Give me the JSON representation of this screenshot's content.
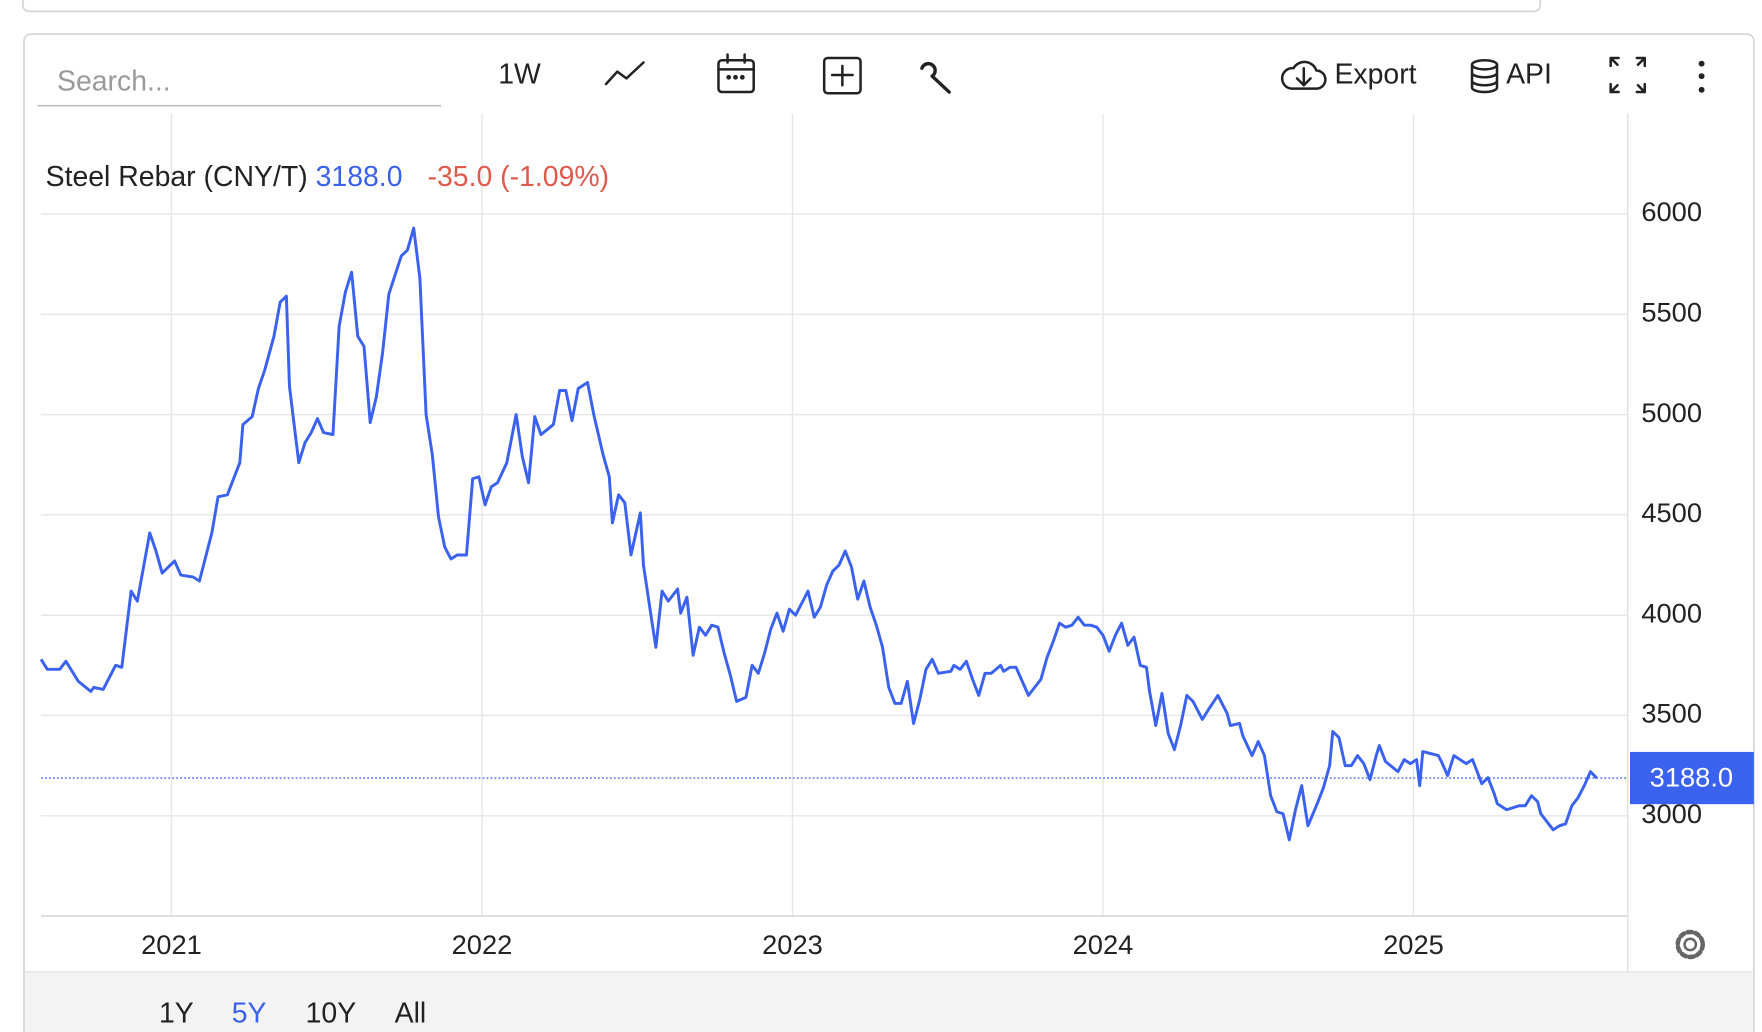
{
  "toolbar": {
    "search_placeholder": "Search...",
    "interval": "1W",
    "export": "Export",
    "api": "API"
  },
  "chart_data": {
    "type": "line",
    "change": "-35.0 (-1.09%)",
    "last": {
      "value": 3188,
      "label": "3188.0"
    },
    "x": [
      2020.58,
      2020.6,
      2020.64,
      2020.66,
      2020.7,
      2020.74,
      2020.75,
      2020.78,
      2020.82,
      2020.84,
      2020.87,
      2020.89,
      2020.93,
      2020.95,
      2020.97,
      2021.01,
      2021.03,
      2021.07,
      2021.09,
      2021.13,
      2021.15,
      2021.18,
      2021.22,
      2021.23,
      2021.26,
      2021.28,
      2021.3,
      2021.33,
      2021.35,
      2021.37,
      2021.38,
      2021.41,
      2021.43,
      2021.45,
      2021.47,
      2021.49,
      2021.52,
      2021.54,
      2021.56,
      2021.58,
      2021.6,
      2021.62,
      2021.64,
      2021.66,
      2021.68,
      2021.7,
      2021.74,
      2021.76,
      2021.78,
      2021.8,
      2021.82,
      2021.84,
      2021.86,
      2021.88,
      2021.9,
      2021.92,
      2021.95,
      2021.97,
      2021.99,
      2022.01,
      2022.03,
      2022.05,
      2022.08,
      2022.11,
      2022.13,
      2022.15,
      2022.17,
      2022.19,
      2022.23,
      2022.25,
      2022.27,
      2022.29,
      2022.31,
      2022.34,
      2022.36,
      2022.39,
      2022.41,
      2022.42,
      2022.44,
      2022.46,
      2022.48,
      2022.51,
      2022.52,
      2022.55,
      2022.56,
      2022.58,
      2022.6,
      2022.63,
      2022.64,
      2022.66,
      2022.68,
      2022.7,
      2022.72,
      2022.74,
      2022.76,
      2022.78,
      2022.8,
      2022.82,
      2022.85,
      2022.87,
      2022.89,
      2022.91,
      2022.93,
      2022.95,
      2022.97,
      2022.99,
      2023.01,
      2023.04,
      2023.05,
      2023.07,
      2023.09,
      2023.11,
      2023.13,
      2023.15,
      2023.17,
      2023.19,
      2023.21,
      2023.23,
      2023.25,
      2023.27,
      2023.29,
      2023.31,
      2023.33,
      2023.35,
      2023.37,
      2023.39,
      2023.41,
      2023.43,
      2023.45,
      2023.47,
      2023.51,
      2023.52,
      2023.54,
      2023.56,
      2023.58,
      2023.6,
      2023.62,
      2023.64,
      2023.67,
      2023.68,
      2023.7,
      2023.72,
      2023.74,
      2023.76,
      2023.78,
      2023.8,
      2023.82,
      2023.84,
      2023.86,
      2023.88,
      2023.9,
      2023.92,
      2023.94,
      2023.96,
      2023.98,
      2024.0,
      2024.02,
      2024.04,
      2024.06,
      2024.08,
      2024.1,
      2024.12,
      2024.14,
      2024.15,
      2024.17,
      2024.19,
      2024.21,
      2024.23,
      2024.25,
      2024.27,
      2024.29,
      2024.32,
      2024.34,
      2024.37,
      2024.4,
      2024.41,
      2024.44,
      2024.45,
      2024.48,
      2024.5,
      2024.52,
      2024.54,
      2024.56,
      2024.58,
      2024.6,
      2024.62,
      2024.64,
      2024.66,
      2024.69,
      2024.71,
      2024.73,
      2024.74,
      2024.76,
      2024.78,
      2024.8,
      2024.82,
      2024.84,
      2024.86,
      2024.88,
      2024.89,
      2024.91,
      2024.95,
      2024.97,
      2024.99,
      2025.01,
      2025.02,
      2025.03,
      2025.08,
      2025.09,
      2025.11,
      2025.13,
      2025.17,
      2025.19,
      2025.2,
      2025.22,
      2025.24,
      2025.26,
      2025.27,
      2025.3,
      2025.34,
      2025.36,
      2025.38,
      2025.4,
      2025.41,
      2025.44,
      2025.45,
      2025.47,
      2025.49,
      2025.51,
      2025.53,
      2025.55,
      2025.57,
      2025.59
    ],
    "series": [
      {
        "name": "Steel Rebar (CNY/T)",
        "color": "#3b62ee",
        "values": [
          3780,
          3730,
          3730,
          3770,
          3670,
          3620,
          3640,
          3630,
          3750,
          3740,
          4120,
          4070,
          4410,
          4320,
          4210,
          4270,
          4200,
          4190,
          4170,
          4410,
          4590,
          4600,
          4760,
          4950,
          4990,
          5130,
          5220,
          5390,
          5560,
          5590,
          5140,
          4760,
          4860,
          4910,
          4980,
          4910,
          4900,
          5440,
          5610,
          5710,
          5390,
          5340,
          4960,
          5090,
          5310,
          5600,
          5790,
          5820,
          5930,
          5680,
          5000,
          4800,
          4490,
          4340,
          4280,
          4300,
          4300,
          4680,
          4690,
          4550,
          4640,
          4660,
          4760,
          5000,
          4790,
          4660,
          4990,
          4900,
          4950,
          5120,
          5120,
          4970,
          5130,
          5160,
          5000,
          4800,
          4690,
          4460,
          4600,
          4560,
          4300,
          4510,
          4250,
          3940,
          3840,
          4120,
          4070,
          4130,
          4010,
          4090,
          3800,
          3940,
          3900,
          3950,
          3940,
          3810,
          3700,
          3570,
          3590,
          3750,
          3710,
          3810,
          3930,
          4010,
          3920,
          4030,
          4000,
          4090,
          4120,
          3990,
          4040,
          4150,
          4220,
          4250,
          4320,
          4240,
          4080,
          4170,
          4040,
          3950,
          3840,
          3640,
          3560,
          3560,
          3670,
          3460,
          3580,
          3730,
          3780,
          3710,
          3720,
          3750,
          3730,
          3770,
          3680,
          3600,
          3710,
          3710,
          3750,
          3720,
          3740,
          3740,
          3670,
          3600,
          3640,
          3680,
          3790,
          3870,
          3960,
          3940,
          3950,
          3990,
          3950,
          3950,
          3940,
          3900,
          3820,
          3900,
          3960,
          3850,
          3890,
          3750,
          3740,
          3620,
          3450,
          3610,
          3410,
          3330,
          3450,
          3600,
          3570,
          3480,
          3530,
          3600,
          3510,
          3450,
          3460,
          3400,
          3300,
          3370,
          3300,
          3100,
          3020,
          3010,
          2880,
          3030,
          3150,
          2950,
          3060,
          3140,
          3250,
          3420,
          3390,
          3250,
          3250,
          3300,
          3260,
          3180,
          3300,
          3350,
          3270,
          3220,
          3280,
          3260,
          3280,
          3150,
          3320,
          3300,
          3270,
          3200,
          3300,
          3260,
          3280,
          3240,
          3160,
          3190,
          3110,
          3060,
          3030,
          3050,
          3050,
          3100,
          3070,
          3010,
          2950,
          2930,
          2950,
          2960,
          3050,
          3090,
          3150,
          3220,
          3188
        ]
      }
    ],
    "xlim": [
      2020.58,
      2025.69
    ],
    "xticks": [
      2021,
      2022,
      2023,
      2024,
      2025
    ],
    "ylim": [
      2500,
      6500
    ],
    "yticks": [
      3000,
      3500,
      4000,
      4500,
      5000,
      5500,
      6000
    ],
    "grid": true,
    "change_color": "#e0594d"
  },
  "ranges": [
    "1Y",
    "5Y",
    "10Y",
    "All"
  ],
  "active_range": 1
}
